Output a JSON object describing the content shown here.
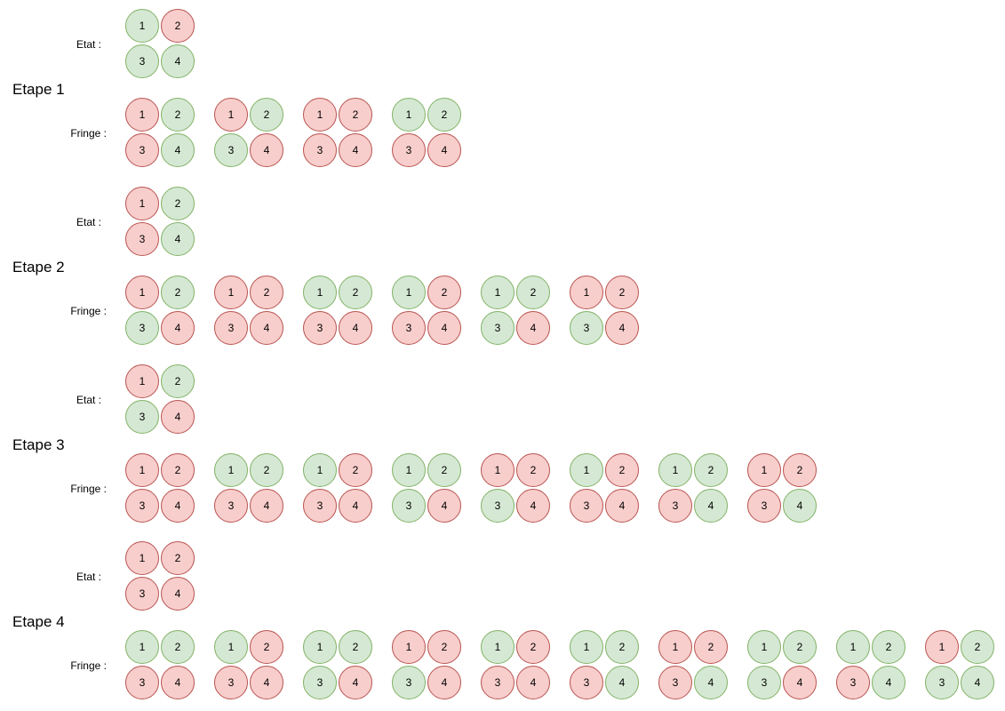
{
  "labels": {
    "etat": "Etat :",
    "fringe": "Fringe :"
  },
  "colors": {
    "green_fill": "#d5e8d4",
    "green_stroke": "#82b366",
    "red_fill": "#f8cecc",
    "red_stroke": "#b85450"
  },
  "cell_numbers": [
    "1",
    "2",
    "3",
    "4"
  ],
  "steps": [
    {
      "title": "Etape 1",
      "etat": [
        "g",
        "r",
        "g",
        "g"
      ],
      "fringe": [
        [
          "r",
          "g",
          "r",
          "g"
        ],
        [
          "r",
          "g",
          "g",
          "r"
        ],
        [
          "r",
          "r",
          "r",
          "r"
        ],
        [
          "g",
          "g",
          "r",
          "r"
        ]
      ]
    },
    {
      "title": "Etape 2",
      "etat": [
        "r",
        "g",
        "r",
        "g"
      ],
      "fringe": [
        [
          "r",
          "g",
          "g",
          "r"
        ],
        [
          "r",
          "r",
          "r",
          "r"
        ],
        [
          "g",
          "g",
          "r",
          "r"
        ],
        [
          "g",
          "r",
          "r",
          "r"
        ],
        [
          "g",
          "g",
          "g",
          "r"
        ],
        [
          "r",
          "r",
          "g",
          "r"
        ]
      ]
    },
    {
      "title": "Etape 3",
      "etat": [
        "r",
        "g",
        "g",
        "r"
      ],
      "fringe": [
        [
          "r",
          "r",
          "r",
          "r"
        ],
        [
          "g",
          "g",
          "r",
          "r"
        ],
        [
          "g",
          "r",
          "r",
          "r"
        ],
        [
          "g",
          "g",
          "g",
          "r"
        ],
        [
          "r",
          "r",
          "g",
          "r"
        ],
        [
          "g",
          "r",
          "r",
          "r"
        ],
        [
          "g",
          "g",
          "r",
          "g"
        ],
        [
          "r",
          "r",
          "r",
          "g"
        ]
      ]
    },
    {
      "title": "Etape 4",
      "etat": [
        "r",
        "r",
        "r",
        "r"
      ],
      "fringe": [
        [
          "g",
          "g",
          "r",
          "r"
        ],
        [
          "g",
          "r",
          "r",
          "r"
        ],
        [
          "g",
          "g",
          "g",
          "r"
        ],
        [
          "r",
          "r",
          "g",
          "r"
        ],
        [
          "g",
          "r",
          "r",
          "r"
        ],
        [
          "g",
          "g",
          "r",
          "g"
        ],
        [
          "r",
          "r",
          "r",
          "g"
        ],
        [
          "g",
          "g",
          "g",
          "r"
        ],
        [
          "g",
          "g",
          "r",
          "g"
        ],
        [
          "r",
          "g",
          "g",
          "g"
        ]
      ]
    }
  ]
}
